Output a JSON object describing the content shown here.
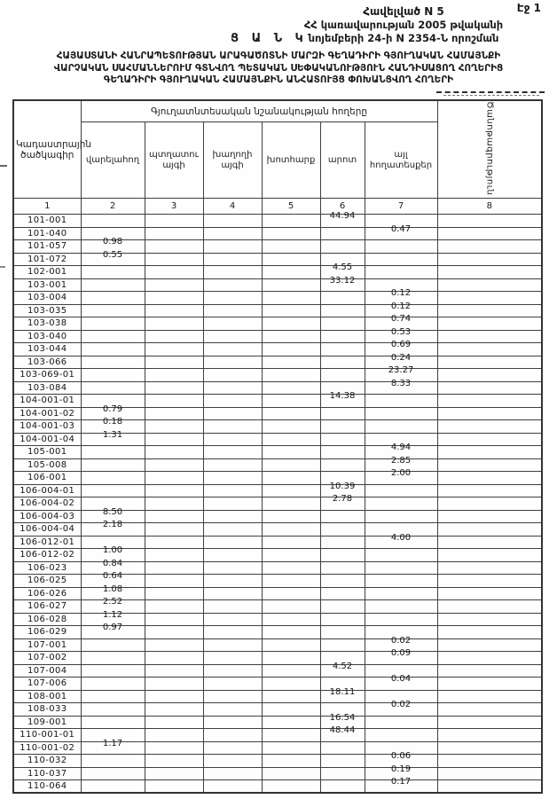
{
  "page": {
    "page_label": "Էջ 1"
  },
  "header": {
    "appendix": "Հավելված N 5",
    "gov_line1": "ՀՀ կառավարության 2005 թվականի",
    "gov_line2": "նոյեմբերի 24-ի N 2354-Ն որոշման",
    "list_label": "Ց Ա Ն Կ"
  },
  "title": {
    "line1": "ՀԱՅԱՍՏԱՆԻ ՀԱՆՐԱՊԵՏՈՒԹՅԱՆ ԱՐԱԳԱԾՈՏՆԻ ՄԱՐԶԻ ԳԵՂԱԴԻՐԻ ԳՅՈՒՂԱԿԱՆ ՀԱՄԱՅՆՔԻ",
    "line2": "ՎԱՐՉԱԿԱՆ ՍԱՀՄԱՆՆԵՐՈՒՄ ԳՏՆՎՈՂ ՊԵՏԱԿԱՆ ՍԵՓԱԿԱՆՈՒԹՅՈՒՆ ՀԱՆԴԻՍԱՑՈՂ ՀՈՂԵՐԻՑ",
    "line3": "ԳԵՂԱԴԻՐԻ ԳՅՈՒՂԱԿԱՆ ՀԱՄԱՅՆՔԻՆ ԱՆՀԱՏՈՒՅՑ ՓՈԽԱՆՑՎՈՂ ՀՈՂԵՐԻ"
  },
  "table": {
    "col1_header": "Կադաստրային ծածկագիր",
    "group_header": "Գյուղատնտեսական նշանակության հողերը",
    "note_header": "Ծանոթագրություն",
    "sub_headers": [
      "վարելահող",
      "պտղատու այգի",
      "խաղողի այգի",
      "խոտհարք",
      "արոտ",
      "այլ հողատեսքեր"
    ],
    "column_numbers": [
      "1",
      "2",
      "3",
      "4",
      "5",
      "6",
      "7",
      "8"
    ],
    "rows": [
      [
        "101-001",
        "",
        "",
        "",
        "",
        "44.94",
        "",
        ""
      ],
      [
        "101-040",
        "",
        "",
        "",
        "",
        "",
        "0.47",
        ""
      ],
      [
        "101-057",
        "0.98",
        "",
        "",
        "",
        "",
        "",
        ""
      ],
      [
        "101-072",
        "0.55",
        "",
        "",
        "",
        "",
        "",
        ""
      ],
      [
        "102-001",
        "",
        "",
        "",
        "",
        "4.55",
        "",
        ""
      ],
      [
        "103-001",
        "",
        "",
        "",
        "",
        "33.12",
        "",
        ""
      ],
      [
        "103-004",
        "",
        "",
        "",
        "",
        "",
        "0.12",
        ""
      ],
      [
        "103-035",
        "",
        "",
        "",
        "",
        "",
        "0.12",
        ""
      ],
      [
        "103-038",
        "",
        "",
        "",
        "",
        "",
        "0.74",
        ""
      ],
      [
        "103-040",
        "",
        "",
        "",
        "",
        "",
        "0.53",
        ""
      ],
      [
        "103-044",
        "",
        "",
        "",
        "",
        "",
        "0.69",
        ""
      ],
      [
        "103-066",
        "",
        "",
        "",
        "",
        "",
        "0.24",
        ""
      ],
      [
        "103-069-01",
        "",
        "",
        "",
        "",
        "",
        "23.27",
        ""
      ],
      [
        "103-084",
        "",
        "",
        "",
        "",
        "",
        "8.33",
        ""
      ],
      [
        "104-001-01",
        "",
        "",
        "",
        "",
        "14.38",
        "",
        ""
      ],
      [
        "104-001-02",
        "0.79",
        "",
        "",
        "",
        "",
        "",
        ""
      ],
      [
        "104-001-03",
        "0.18",
        "",
        "",
        "",
        "",
        "",
        ""
      ],
      [
        "104-001-04",
        "1.31",
        "",
        "",
        "",
        "",
        "",
        ""
      ],
      [
        "105-001",
        "",
        "",
        "",
        "",
        "",
        "4.94",
        ""
      ],
      [
        "105-008",
        "",
        "",
        "",
        "",
        "",
        "2.85",
        ""
      ],
      [
        "106-001",
        "",
        "",
        "",
        "",
        "",
        "2.00",
        ""
      ],
      [
        "106-004-01",
        "",
        "",
        "",
        "",
        "10.39",
        "",
        ""
      ],
      [
        "106-004-02",
        "",
        "",
        "",
        "",
        "2.78",
        "",
        ""
      ],
      [
        "106-004-03",
        "8.50",
        "",
        "",
        "",
        "",
        "",
        ""
      ],
      [
        "106-004-04",
        "2.18",
        "",
        "",
        "",
        "",
        "",
        ""
      ],
      [
        "106-012-01",
        "",
        "",
        "",
        "",
        "",
        "4.00",
        ""
      ],
      [
        "106-012-02",
        "1.00",
        "",
        "",
        "",
        "",
        "",
        ""
      ],
      [
        "106-023",
        "0.84",
        "",
        "",
        "",
        "",
        "",
        ""
      ],
      [
        "106-025",
        "0.64",
        "",
        "",
        "",
        "",
        "",
        ""
      ],
      [
        "106-026",
        "1.08",
        "",
        "",
        "",
        "",
        "",
        ""
      ],
      [
        "106-027",
        "2.52",
        "",
        "",
        "",
        "",
        "",
        ""
      ],
      [
        "106-028",
        "1.12",
        "",
        "",
        "",
        "",
        "",
        ""
      ],
      [
        "106-029",
        "0.97",
        "",
        "",
        "",
        "",
        "",
        ""
      ],
      [
        "107-001",
        "",
        "",
        "",
        "",
        "",
        "0.02",
        ""
      ],
      [
        "107-002",
        "",
        "",
        "",
        "",
        "",
        "0.09",
        ""
      ],
      [
        "107-004",
        "",
        "",
        "",
        "",
        "4.52",
        "",
        ""
      ],
      [
        "107-006",
        "",
        "",
        "",
        "",
        "",
        "0.04",
        ""
      ],
      [
        "108-001",
        "",
        "",
        "",
        "",
        "18.11",
        "",
        ""
      ],
      [
        "108-033",
        "",
        "",
        "",
        "",
        "",
        "0.02",
        ""
      ],
      [
        "109-001",
        "",
        "",
        "",
        "",
        "16.54",
        "",
        ""
      ],
      [
        "110-001-01",
        "",
        "",
        "",
        "",
        "48.44",
        "",
        ""
      ],
      [
        "110-001-02",
        "1.17",
        "",
        "",
        "",
        "",
        "",
        ""
      ],
      [
        "110-032",
        "",
        "",
        "",
        "",
        "",
        "0.06",
        ""
      ],
      [
        "110-037",
        "",
        "",
        "",
        "",
        "",
        "0.19",
        ""
      ],
      [
        "110-064",
        "",
        "",
        "",
        "",
        "",
        "0.17",
        ""
      ]
    ]
  }
}
